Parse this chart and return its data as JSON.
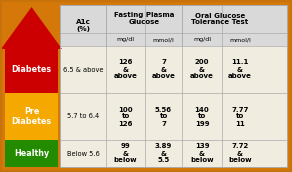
{
  "bg_outer": "#d4780a",
  "bg_inner": "#f5e6c8",
  "arrow_color": "#cc0000",
  "row_colors": [
    "#cc0000",
    "#f5a800",
    "#228B00"
  ],
  "row_labels": [
    "Diabetes",
    "Pre\nDiabetes",
    "Healthy"
  ],
  "row_text_color": "#ffffff",
  "col_header1": "A1c\n(%)",
  "col_header2a": "Fasting Plasma\nGlucose",
  "col_header2b": "Oral Glucose\nTolerance Test",
  "sub_headers": [
    "mg/dl",
    "mmol/l",
    "mg/dl",
    "mmol/l"
  ],
  "a1c": [
    "6.5 & above",
    "5.7 to 6.4",
    "Below 5.6"
  ],
  "fp_mgdl": [
    "126\n&\nabove",
    "100\nto\n126",
    "99\n&\nbelow"
  ],
  "fp_mmol": [
    "7\n&\nabove",
    "5.56\nto\n7",
    "3.89\n&\n5.5"
  ],
  "og_mgdl": [
    "200\n&\nabove",
    "140\nto\n199",
    "139\n&\nbelow"
  ],
  "og_mmol": [
    "11.1\n&\nabove",
    "7.77\nto\n11",
    "7.72\n&\nbelow"
  ],
  "header_bg": "#d9d9d9",
  "cell_bg": "#f0ede0",
  "grid_color": "#aaaaaa",
  "border_color": "#c8720a"
}
